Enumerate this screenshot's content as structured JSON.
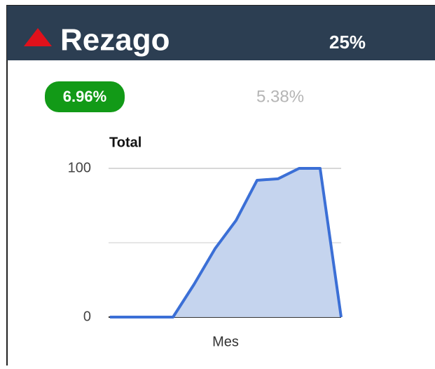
{
  "header": {
    "title": "Rezago",
    "value": "25%"
  },
  "badge": "6.96%",
  "secondary": "5.38%",
  "chart_data": {
    "type": "area",
    "ylabel": "Total",
    "xlabel": "Mes",
    "categories": [
      null,
      null,
      null,
      null,
      null,
      null,
      null,
      null,
      null,
      null,
      null,
      null
    ],
    "values": [
      0,
      0,
      0,
      0,
      22,
      46,
      65,
      92,
      93,
      100,
      100,
      0
    ],
    "color": "#3b6fd6",
    "fill": "#c5d4ee",
    "ylim": [
      0,
      100
    ],
    "yticks": [
      0,
      100
    ],
    "grid_lines": [
      50
    ],
    "grid": true
  }
}
